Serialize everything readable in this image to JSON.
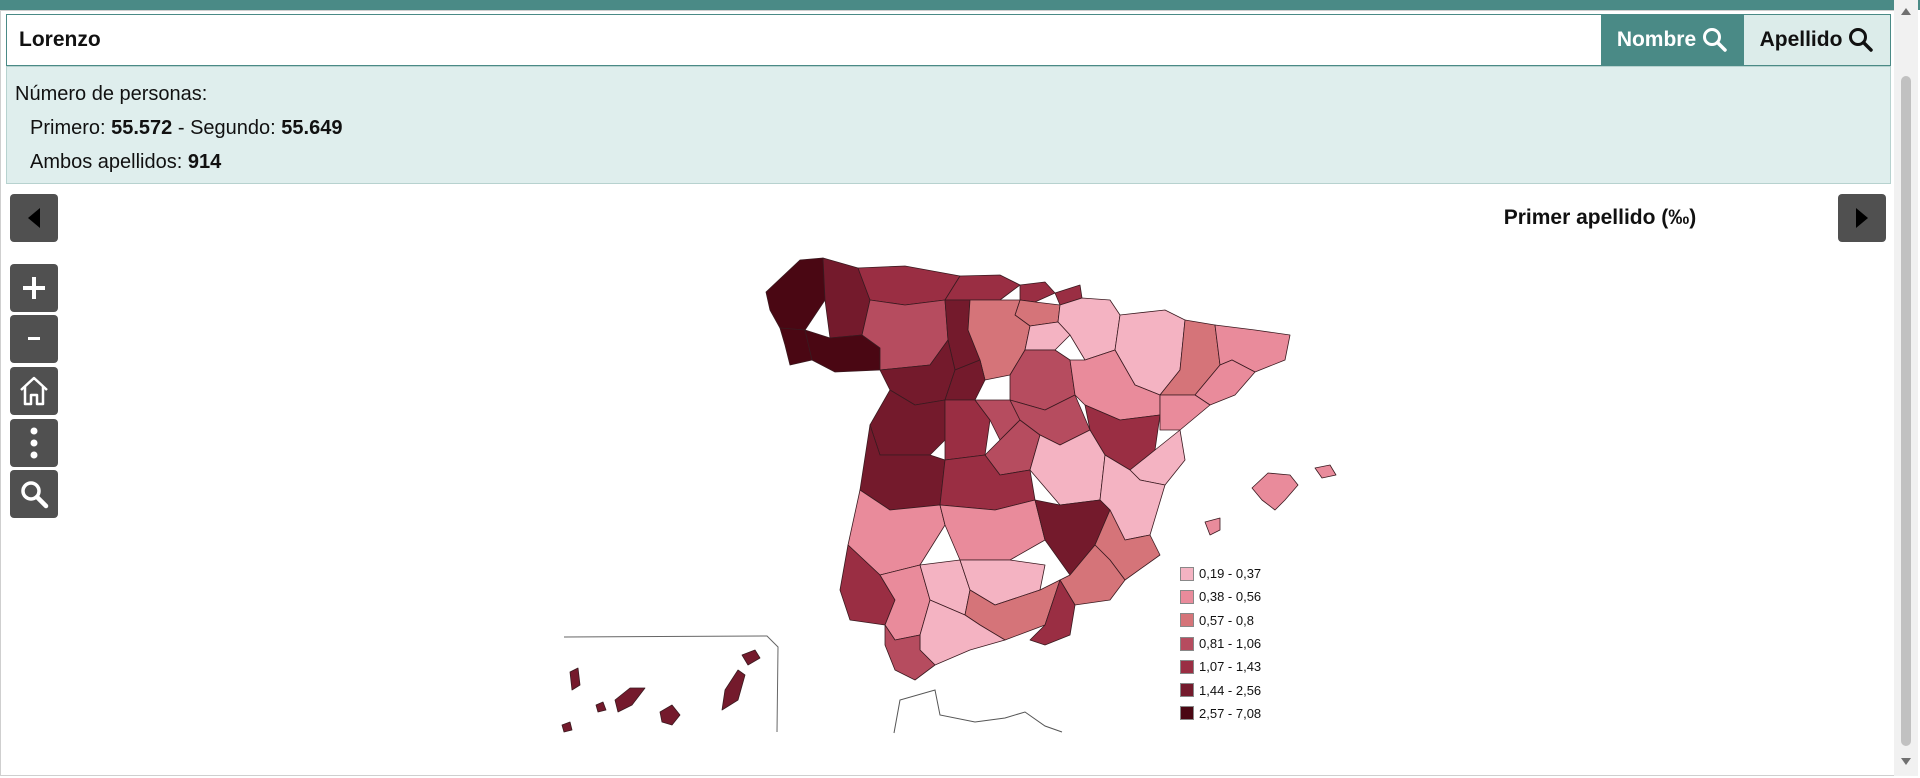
{
  "search": {
    "value": "Lorenzo",
    "nombre_label": "Nombre",
    "apellido_label": "Apellido"
  },
  "info": {
    "heading": "Número de personas:",
    "primero_label": "Primero: ",
    "primero_value": "55.572",
    "segundo_label": " - Segundo: ",
    "segundo_value": "55.649",
    "ambos_label": "Ambos apellidos: ",
    "ambos_value": "914"
  },
  "map": {
    "title": "Primer apellido (‰)",
    "legend": [
      {
        "label": "0,19 - 0,37",
        "color": "#f4b3c2"
      },
      {
        "label": "0,38 - 0,56",
        "color": "#e98b9b"
      },
      {
        "label": "0,57 - 0,8",
        "color": "#d57479"
      },
      {
        "label": "0,81 - 1,06",
        "color": "#b64c5f"
      },
      {
        "label": "1,07 - 1,43",
        "color": "#9a2e43"
      },
      {
        "label": "1,44 - 2,56",
        "color": "#741a2c"
      },
      {
        "label": "2,57 - 7,08",
        "color": "#4a0713"
      }
    ]
  },
  "controls": {
    "prev_icon": "arrow-left-icon",
    "next_icon": "arrow-right-icon",
    "zoom_in_icon": "plus-icon",
    "zoom_out_icon": "minus-icon",
    "home_icon": "home-icon",
    "more_icon": "vertical-dots-icon",
    "search_icon": "search-icon"
  }
}
